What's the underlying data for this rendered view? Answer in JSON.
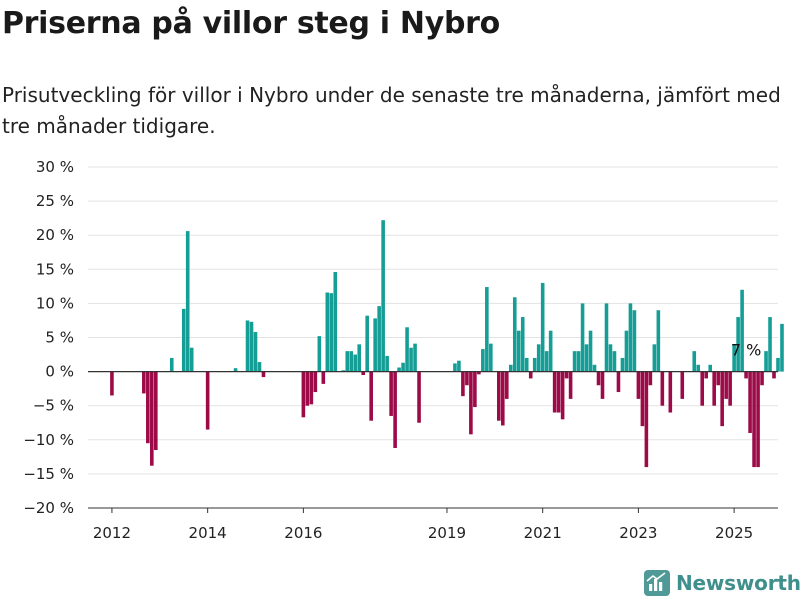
{
  "title": "Priserna på villor steg i Nybro",
  "subtitle": "Prisutveckling för villor i Nybro under de senaste tre månaderna, jämfört med tre månader tidigare.",
  "brand": {
    "name": "Newsworthy",
    "icon": "chart-logo-icon",
    "color": "#3f8f8c"
  },
  "chart_data": {
    "type": "bar",
    "x_start": "2012-01",
    "x_range": [
      "2011-07",
      "2025-12"
    ],
    "ylim": [
      -20,
      30
    ],
    "y_ticks": [
      30,
      25,
      20,
      15,
      10,
      5,
      0,
      -5,
      -10,
      -15,
      -20
    ],
    "y_tick_labels": [
      "30 %",
      "25 %",
      "20 %",
      "15 %",
      "10 %",
      "5 %",
      "0 %",
      "−5 %",
      "−10 %",
      "−15 %",
      "−20 %"
    ],
    "x_ticks": [
      "2012",
      "2014",
      "2016",
      "2019",
      "2021",
      "2023",
      "2025"
    ],
    "grid": true,
    "colors": {
      "positive": "#159e96",
      "negative": "#9c0a47"
    },
    "annotation": {
      "text": "7 %",
      "x": "2025-04"
    },
    "series": [
      {
        "values": [
          -3.5,
          0,
          0,
          0,
          0,
          0,
          0,
          0,
          -3.2,
          -10.5,
          -13.8,
          -11.5,
          0,
          0,
          0,
          2.0,
          0,
          0,
          9.2,
          20.6,
          3.5,
          0,
          0,
          0,
          -8.5,
          0,
          0,
          0,
          0,
          0,
          0,
          0.5,
          0,
          0,
          7.5,
          7.3,
          5.8,
          1.4,
          -0.8,
          0,
          0,
          0,
          0,
          0,
          0,
          0,
          0,
          0,
          -6.7,
          -5.0,
          -4.8,
          -3.0,
          5.2,
          -1.8,
          11.6,
          11.5,
          14.6,
          0,
          0.2,
          3.0,
          3.0,
          2.5,
          4.0,
          -0.5,
          8.2,
          -7.2,
          7.8,
          9.6,
          22.2,
          2.3,
          -6.5,
          -11.2,
          0.6,
          1.3,
          6.5,
          3.5,
          4.1,
          -7.5,
          0,
          0,
          0,
          0,
          0,
          0,
          0,
          0,
          1.2,
          1.6,
          -3.6,
          -2.0,
          -9.2,
          -5.2,
          -0.4,
          3.3,
          12.4,
          4.1,
          0,
          -7.2,
          -7.9,
          -4.0,
          1.0,
          10.9,
          6.0,
          8.0,
          2.0,
          -1.0,
          2.0,
          4.0,
          13.0,
          3.0,
          6.0,
          -6.0,
          -6.0,
          -7.0,
          -1.0,
          -4.0,
          3.0,
          3.0,
          10.0,
          4.0,
          6.0,
          1.0,
          -2.0,
          -4.0,
          10.0,
          4.0,
          3.0,
          -3.0,
          2.0,
          6.0,
          10.0,
          9.0,
          -4.0,
          -8.0,
          -14.0,
          -2.0,
          4.0,
          9.0,
          -5.0,
          0,
          -6.0,
          0,
          0,
          -4.0,
          0,
          0,
          3.0,
          1.0,
          -5.0,
          -1.0,
          1.0,
          -5.0,
          -2.0,
          -8.0,
          -4.0,
          -5.0,
          4.0,
          8.0,
          12.0,
          -1.0,
          -9.0,
          -14.0,
          -14.0,
          -2.0,
          3.0,
          8.0,
          -1.0,
          2.0,
          7.0
        ]
      }
    ]
  }
}
